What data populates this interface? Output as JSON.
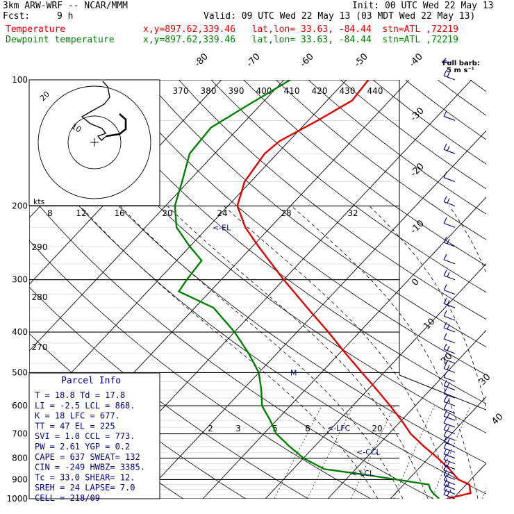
{
  "header": {
    "model": "3km ARW-WRF -- NCAR/MMM",
    "init": "Init: 00 UTC Wed 22 May 13",
    "fcst_label": "Fcst:",
    "fcst_value": "9 h",
    "valid": "Valid: 09 UTC Wed 22 May 13 (03 MDT Wed 22 May 13)",
    "temp_label": "Temperature",
    "dew_label": "Dewpoint temperature",
    "temp_loc": "x,y=897.62,339.46   lat,lon= 33.63, -84.44  stn=ATL ,72219",
    "dew_loc": "x,y=897.62,339.46   lat,lon= 33.63, -84.44  stn=ATL ,72219",
    "full_barb_1": "Full barb:",
    "full_barb_2": "5 m s⁻¹"
  },
  "colors": {
    "temperature": "#e00000",
    "dewpoint": "#008000",
    "parcel": "#000080",
    "isobar": "#000000",
    "isotherm": "#000000"
  },
  "chart_data": {
    "type": "line",
    "skew_t": true,
    "pressure_levels_hpa": [
      1000,
      900,
      800,
      700,
      600,
      500,
      400,
      300,
      200,
      100
    ],
    "pressure_tick_labels": [
      "1000",
      "900",
      "800",
      "700",
      "600",
      "500",
      "400",
      "300",
      "200",
      "100"
    ],
    "isotherm_labels_c": [
      "-80",
      "-70",
      "-60",
      "-50",
      "-40",
      "-30",
      "-20",
      "-10",
      "0",
      "10",
      "20",
      "30",
      "40"
    ],
    "theta_labels_k": [
      "370",
      "380",
      "390",
      "400",
      "410",
      "420",
      "430",
      "440"
    ],
    "theta_low_labels_k": [
      "290",
      "280",
      "270"
    ],
    "mixing_ratio_labels": [
      "2",
      "3",
      "5",
      "8",
      "20"
    ],
    "wind_speed_labels_kts": [
      "8",
      "12",
      "16",
      "20",
      "24",
      "28",
      "32"
    ],
    "hodograph_label_kts": "kts",
    "hodograph_ring_labels": [
      "10",
      "20"
    ],
    "temperature": [
      {
        "p": 1000,
        "t": 19.0
      },
      {
        "p": 970,
        "t": 22.0
      },
      {
        "p": 925,
        "t": 20.5
      },
      {
        "p": 900,
        "t": 18.0
      },
      {
        "p": 850,
        "t": 15.0
      },
      {
        "p": 800,
        "t": 11.5
      },
      {
        "p": 750,
        "t": 7.5
      },
      {
        "p": 700,
        "t": 3.5
      },
      {
        "p": 650,
        "t": 0.0
      },
      {
        "p": 600,
        "t": -4.0
      },
      {
        "p": 550,
        "t": -8.5
      },
      {
        "p": 500,
        "t": -13.5
      },
      {
        "p": 450,
        "t": -19.0
      },
      {
        "p": 400,
        "t": -25.0
      },
      {
        "p": 350,
        "t": -32.0
      },
      {
        "p": 300,
        "t": -40.0
      },
      {
        "p": 250,
        "t": -49.0
      },
      {
        "p": 225,
        "t": -54.0
      },
      {
        "p": 200,
        "t": -58.5
      },
      {
        "p": 175,
        "t": -61.0
      },
      {
        "p": 150,
        "t": -62.0
      },
      {
        "p": 140,
        "t": -61.5
      },
      {
        "p": 125,
        "t": -58.5
      },
      {
        "p": 112,
        "t": -56.0
      },
      {
        "p": 100,
        "t": -56.5
      }
    ],
    "dewpoint": [
      {
        "p": 1000,
        "t": 17.8
      },
      {
        "p": 970,
        "t": 16.0
      },
      {
        "p": 950,
        "t": 15.0
      },
      {
        "p": 925,
        "t": 14.0
      },
      {
        "p": 875,
        "t": 2.0
      },
      {
        "p": 850,
        "t": -5.0
      },
      {
        "p": 800,
        "t": -10.0
      },
      {
        "p": 750,
        "t": -14.0
      },
      {
        "p": 700,
        "t": -18.0
      },
      {
        "p": 650,
        "t": -21.0
      },
      {
        "p": 600,
        "t": -24.5
      },
      {
        "p": 550,
        "t": -27.0
      },
      {
        "p": 500,
        "t": -30.0
      },
      {
        "p": 450,
        "t": -34.5
      },
      {
        "p": 400,
        "t": -40.0
      },
      {
        "p": 350,
        "t": -47.0
      },
      {
        "p": 320,
        "t": -55.0
      },
      {
        "p": 300,
        "t": -55.5
      },
      {
        "p": 270,
        "t": -56.0
      },
      {
        "p": 250,
        "t": -60.0
      },
      {
        "p": 225,
        "t": -65.0
      },
      {
        "p": 200,
        "t": -68.5
      },
      {
        "p": 175,
        "t": -71.0
      },
      {
        "p": 150,
        "t": -74.0
      },
      {
        "p": 130,
        "t": -74.5
      },
      {
        "p": 115,
        "t": -72.0
      },
      {
        "p": 100,
        "t": -69.0
      }
    ],
    "markers": [
      {
        "label": "<-EL",
        "p": 225
      },
      {
        "label": "<-LFC",
        "p": 677
      },
      {
        "label": "<-CCL",
        "p": 773
      },
      {
        "label": "<-LCL",
        "p": 868
      },
      {
        "label": "M",
        "p": 500
      }
    ],
    "parcel_info": {
      "title": "Parcel Info",
      "rows": [
        "T  =   18.8  Td =  17.8",
        "LI =   -2.5  LCL =  868.",
        "K  =     18  LFC =  677.",
        "TT =     47  EL  =  225",
        "SVI =   1.0  CCL =  773.",
        "PW =   2.61  YGP =   0.2",
        "CAPE =  637  SWEAT=  132",
        "CIN =  -249  HWBZ= 3385.",
        "Tc =   33.0  SHEAR=  12.",
        "SREH =   24  LAPSE=  7.0",
        "CELL = 218/09"
      ]
    }
  }
}
